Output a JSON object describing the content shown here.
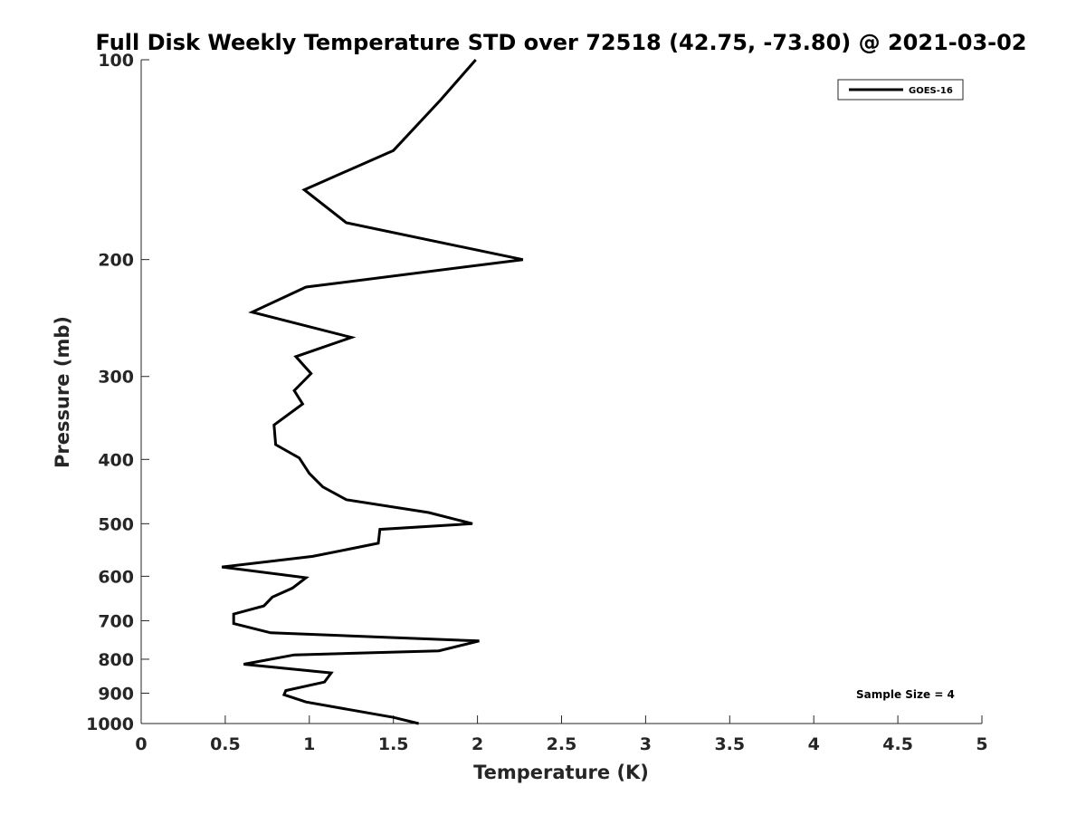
{
  "chart_data": {
    "type": "line",
    "title": "Full Disk Weekly Temperature STD over 72518 (42.75, -73.80) @ 2021-03-02",
    "xlabel": "Temperature (K)",
    "ylabel": "Pressure (mb)",
    "xlim": [
      0,
      5
    ],
    "ylim": [
      1000,
      100
    ],
    "yscale": "log",
    "y_reversed": true,
    "x_ticks": [
      "0",
      "0.5",
      "1",
      "1.5",
      "2",
      "2.5",
      "3",
      "3.5",
      "4",
      "4.5",
      "5"
    ],
    "y_ticks": [
      "100",
      "200",
      "300",
      "400",
      "500",
      "600",
      "700",
      "800",
      "900",
      "1000"
    ],
    "grid": false,
    "legend_position": "top-right",
    "series": [
      {
        "name": "GOES-16",
        "color": "#000000",
        "x": [
          1.99,
          1.78,
          1.5,
          0.97,
          1.22,
          2.27,
          0.98,
          0.66,
          1.25,
          0.92,
          1.01,
          0.91,
          0.96,
          0.79,
          0.8,
          0.94,
          1.0,
          1.08,
          1.22,
          1.71,
          1.97,
          1.42,
          1.41,
          1.02,
          0.48,
          0.98,
          0.9,
          0.78,
          0.73,
          0.55,
          0.55,
          0.77,
          2.01,
          1.77,
          0.91,
          0.61,
          1.13,
          1.09,
          0.86,
          0.85,
          0.98,
          1.5,
          1.65
        ],
        "y": [
          100,
          115,
          137,
          157,
          176,
          200,
          220,
          240,
          262,
          280,
          297,
          315,
          330,
          355,
          380,
          398,
          420,
          440,
          460,
          481,
          500,
          510,
          535,
          560,
          581,
          603,
          625,
          645,
          665,
          684,
          707,
          730,
          751,
          777,
          788,
          814,
          839,
          866,
          892,
          905,
          928,
          979,
          1000
        ]
      }
    ],
    "annotations": [
      "Sample Size = 4"
    ]
  }
}
